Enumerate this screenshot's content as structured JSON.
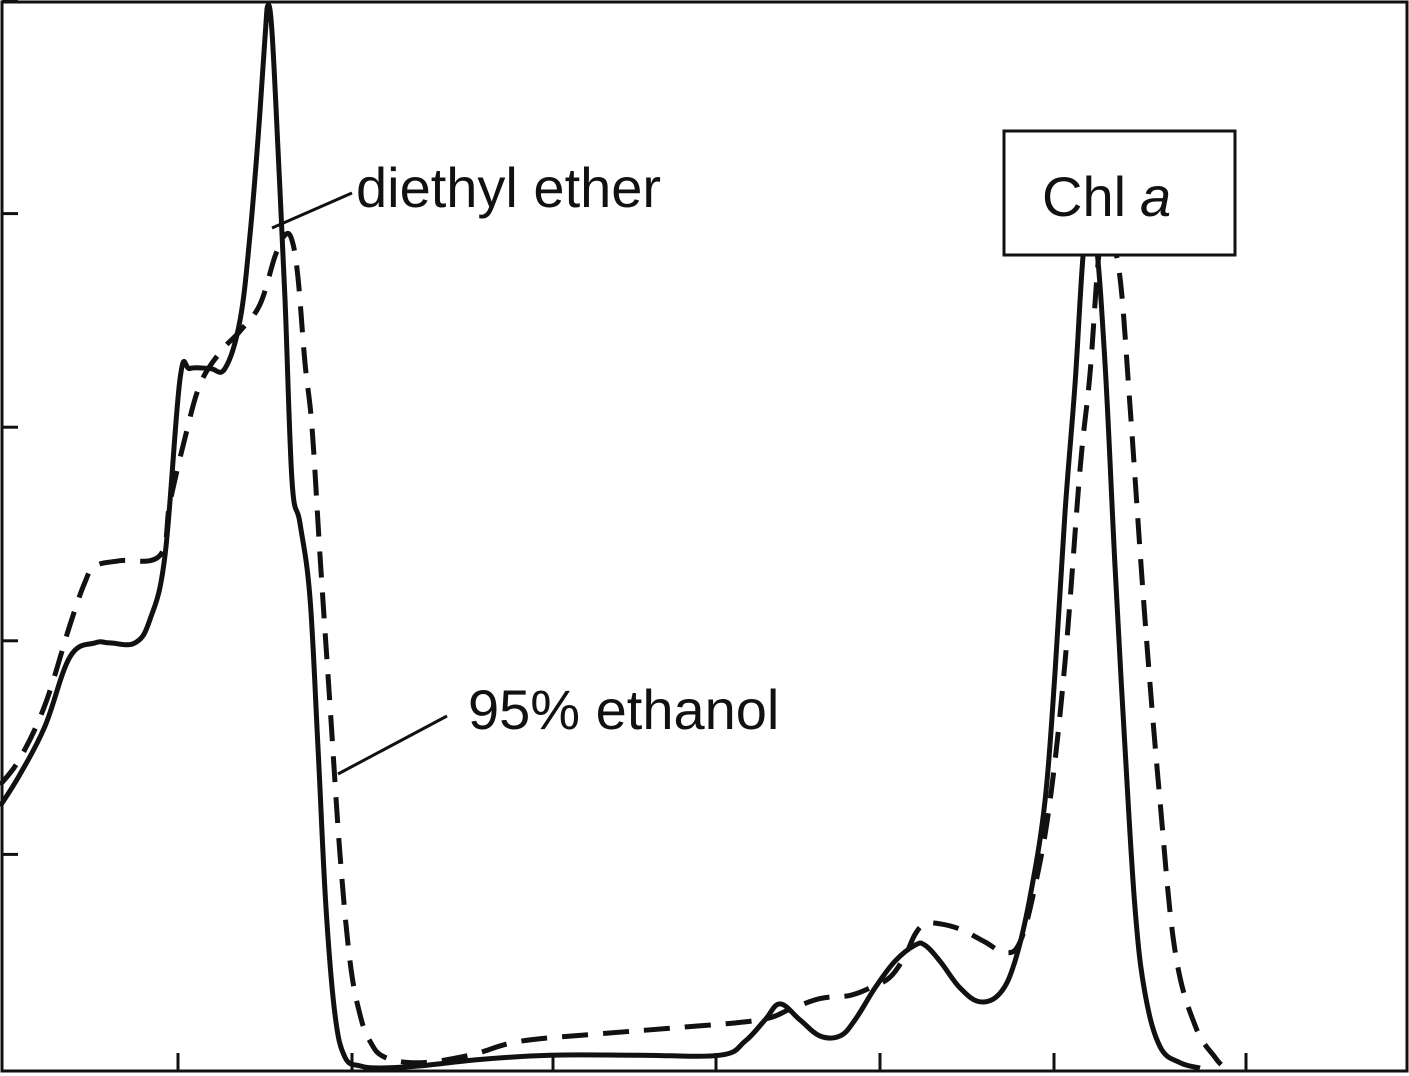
{
  "colors": {
    "line": "#111111",
    "background": "#ffffff"
  },
  "chart_data": {
    "type": "line",
    "title": "",
    "xlabel": "",
    "ylabel": "",
    "xlim": [
      0,
      1409
    ],
    "ylim": [
      0,
      1
    ],
    "y_ticks": [
      0.2,
      0.4,
      0.6,
      0.8,
      1.0
    ],
    "grid": false,
    "legend_box": {
      "text": "Chl",
      "italic_text": "a"
    },
    "annotations": [
      {
        "series": 0,
        "text": "diethyl ether"
      },
      {
        "series": 1,
        "text": "95% ethanol"
      }
    ],
    "series": [
      {
        "name": "diethyl ether",
        "style": "solid",
        "x": [
          0,
          20,
          45,
          70,
          95,
          110,
          135,
          150,
          165,
          180,
          190,
          210,
          225,
          240,
          250,
          258,
          265,
          268,
          272,
          278,
          285,
          292,
          300,
          310,
          318,
          326,
          335,
          345,
          360,
          380,
          420,
          480,
          550,
          640,
          720,
          745,
          765,
          780,
          800,
          820,
          840,
          855,
          875,
          895,
          915,
          925,
          940,
          960,
          980,
          1000,
          1015,
          1030,
          1045,
          1055,
          1065,
          1075,
          1085,
          1095,
          1105,
          1115,
          1125,
          1135,
          1145,
          1160,
          1180,
          1200
        ],
        "y": [
          0.245,
          0.275,
          0.32,
          0.385,
          0.398,
          0.398,
          0.398,
          0.42,
          0.48,
          0.645,
          0.655,
          0.655,
          0.655,
          0.7,
          0.78,
          0.87,
          0.965,
          0.995,
          0.97,
          0.86,
          0.72,
          0.55,
          0.51,
          0.44,
          0.3,
          0.15,
          0.05,
          0.01,
          0.002,
          0.0,
          0.002,
          0.008,
          0.012,
          0.012,
          0.012,
          0.025,
          0.045,
          0.06,
          0.045,
          0.03,
          0.03,
          0.045,
          0.075,
          0.1,
          0.115,
          0.115,
          0.1,
          0.075,
          0.062,
          0.07,
          0.1,
          0.16,
          0.25,
          0.37,
          0.52,
          0.64,
          0.78,
          0.78,
          0.66,
          0.47,
          0.3,
          0.15,
          0.07,
          0.02,
          0.005,
          0.0
        ]
      },
      {
        "name": "95% ethanol",
        "style": "dashed",
        "x": [
          0,
          20,
          45,
          70,
          85,
          95,
          120,
          160,
          170,
          185,
          200,
          220,
          240,
          260,
          275,
          285,
          292,
          298,
          305,
          312,
          320,
          330,
          340,
          350,
          360,
          370,
          385,
          420,
          470,
          520,
          600,
          680,
          760,
          790,
          820,
          850,
          870,
          890,
          905,
          915,
          925,
          940,
          960,
          985,
          1005,
          1020,
          1035,
          1050,
          1065,
          1080,
          1090,
          1100,
          1110,
          1120,
          1130,
          1145,
          1160,
          1175,
          1195,
          1215,
          1225
        ],
        "y": [
          0.265,
          0.29,
          0.34,
          0.415,
          0.455,
          0.47,
          0.475,
          0.48,
          0.53,
          0.59,
          0.64,
          0.67,
          0.69,
          0.715,
          0.76,
          0.78,
          0.775,
          0.74,
          0.66,
          0.6,
          0.48,
          0.34,
          0.2,
          0.1,
          0.05,
          0.025,
          0.01,
          0.005,
          0.012,
          0.025,
          0.032,
          0.038,
          0.045,
          0.055,
          0.065,
          0.068,
          0.075,
          0.085,
          0.105,
          0.125,
          0.135,
          0.135,
          0.13,
          0.118,
          0.108,
          0.118,
          0.17,
          0.25,
          0.38,
          0.56,
          0.65,
          0.77,
          0.775,
          0.74,
          0.62,
          0.42,
          0.25,
          0.11,
          0.04,
          0.01,
          0.0
        ]
      }
    ]
  }
}
